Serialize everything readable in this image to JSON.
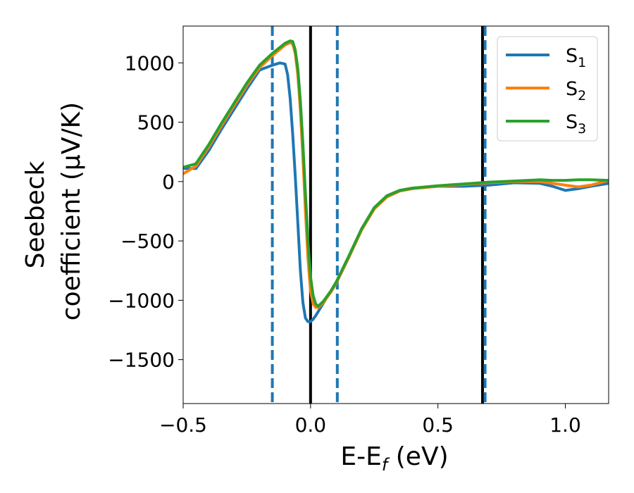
{
  "chart_data": {
    "type": "line",
    "xlabel_main": "E-E",
    "xlabel_sub": "f",
    "xlabel_unit": " (eV)",
    "ylabel_line1": "Seebeck",
    "ylabel_line2": "coefficient  (μV/K)",
    "xlim": [
      -0.5,
      1.17
    ],
    "ylim": [
      -1870,
      1310
    ],
    "xticks": [
      -0.5,
      0.0,
      0.5,
      1.0
    ],
    "xtick_labels": [
      "−0.5",
      "0.0",
      "0.5",
      "1.0"
    ],
    "yticks": [
      1000,
      500,
      0,
      -500,
      -1000,
      -1500
    ],
    "ytick_labels": [
      "1000",
      "500",
      "0",
      "−500",
      "−1000",
      "−1500"
    ],
    "grid": false,
    "legend_position": "top-right",
    "vlines_solid": [
      0.0,
      0.675
    ],
    "vlines_dashed": [
      -0.15,
      0.105,
      0.685
    ],
    "series": [
      {
        "name": "S",
        "sub": "1",
        "color": "#1f77b4",
        "x": [
          -0.5,
          -0.45,
          -0.4,
          -0.35,
          -0.3,
          -0.25,
          -0.2,
          -0.15,
          -0.12,
          -0.1,
          -0.09,
          -0.08,
          -0.07,
          -0.06,
          -0.05,
          -0.04,
          -0.03,
          -0.02,
          -0.01,
          0.0,
          0.01,
          0.02,
          0.04,
          0.06,
          0.08,
          0.1,
          0.15,
          0.2,
          0.25,
          0.3,
          0.35,
          0.4,
          0.5,
          0.6,
          0.7,
          0.8,
          0.9,
          0.95,
          1.0,
          1.05,
          1.1,
          1.17
        ],
        "y": [
          110,
          110,
          260,
          440,
          610,
          780,
          940,
          980,
          1000,
          990,
          900,
          700,
          400,
          50,
          -350,
          -750,
          -1020,
          -1150,
          -1180,
          -1180,
          -1160,
          -1130,
          -1060,
          -990,
          -920,
          -850,
          -630,
          -400,
          -220,
          -120,
          -75,
          -55,
          -40,
          -40,
          -30,
          -10,
          -15,
          -40,
          -75,
          -60,
          -40,
          -15
        ]
      },
      {
        "name": "S",
        "sub": "2",
        "color": "#ff7f0e",
        "x": [
          -0.5,
          -0.45,
          -0.4,
          -0.35,
          -0.3,
          -0.25,
          -0.2,
          -0.15,
          -0.1,
          -0.08,
          -0.07,
          -0.06,
          -0.05,
          -0.04,
          -0.03,
          -0.02,
          -0.01,
          0.0,
          0.01,
          0.02,
          0.03,
          0.05,
          0.08,
          0.1,
          0.15,
          0.2,
          0.25,
          0.3,
          0.35,
          0.4,
          0.5,
          0.6,
          0.7,
          0.8,
          0.9,
          0.95,
          1.0,
          1.05,
          1.1,
          1.17
        ],
        "y": [
          65,
          130,
          290,
          470,
          640,
          810,
          960,
          1060,
          1150,
          1170,
          1160,
          1080,
          900,
          600,
          200,
          -250,
          -650,
          -920,
          -1030,
          -1060,
          -1060,
          -1020,
          -930,
          -860,
          -640,
          -410,
          -230,
          -130,
          -80,
          -60,
          -40,
          -25,
          -10,
          0,
          0,
          -15,
          -30,
          -45,
          -30,
          10
        ]
      },
      {
        "name": "S",
        "sub": "3",
        "color": "#2ca02c",
        "x": [
          -0.5,
          -0.45,
          -0.4,
          -0.35,
          -0.3,
          -0.25,
          -0.2,
          -0.15,
          -0.1,
          -0.08,
          -0.07,
          -0.06,
          -0.05,
          -0.04,
          -0.03,
          -0.02,
          -0.01,
          0.0,
          0.01,
          0.02,
          0.03,
          0.05,
          0.08,
          0.1,
          0.15,
          0.2,
          0.25,
          0.3,
          0.35,
          0.4,
          0.5,
          0.6,
          0.7,
          0.8,
          0.9,
          0.95,
          1.0,
          1.05,
          1.1,
          1.17
        ],
        "y": [
          120,
          150,
          310,
          490,
          660,
          830,
          980,
          1080,
          1165,
          1185,
          1180,
          1110,
          950,
          680,
          320,
          -100,
          -500,
          -800,
          -960,
          -1030,
          -1050,
          -1010,
          -920,
          -850,
          -630,
          -400,
          -220,
          -120,
          -75,
          -55,
          -35,
          -20,
          -5,
          5,
          15,
          10,
          10,
          15,
          15,
          10
        ]
      }
    ]
  }
}
